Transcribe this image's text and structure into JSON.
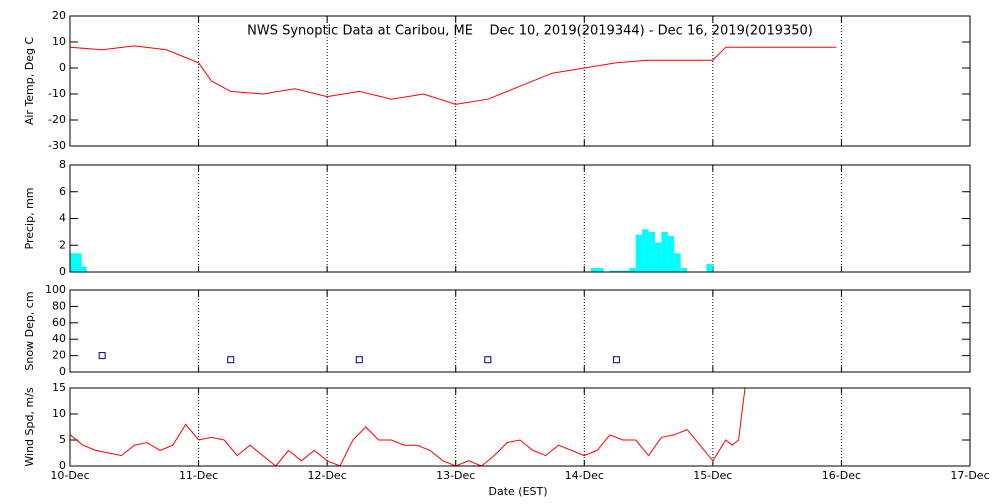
{
  "chart_data": [
    {
      "type": "line",
      "title": "NWS Synoptic Data at Caribou, ME    Dec 10, 2019(2019344) - Dec 16, 2019(2019350)",
      "ylabel": "Air Temp, Deg C",
      "ylim": [
        -30,
        20
      ],
      "yticks": [
        -30,
        -20,
        -10,
        0,
        10,
        20
      ],
      "series": [
        {
          "color": "#ff0000",
          "x": [
            0,
            0.25,
            0.5,
            0.75,
            1.0,
            1.1,
            1.25,
            1.5,
            1.75,
            2.0,
            2.25,
            2.5,
            2.75,
            3.0,
            3.25,
            3.5,
            3.75,
            4.0,
            4.25,
            4.5,
            4.75,
            5.0,
            5.1,
            5.5,
            5.96
          ],
          "values": [
            8,
            7,
            8.5,
            7,
            2,
            -5,
            -9,
            -10,
            -8,
            -11,
            -9,
            -12,
            -10,
            -14,
            -12,
            -7,
            -2,
            0,
            2,
            3,
            3,
            3,
            8,
            8,
            8
          ]
        }
      ]
    },
    {
      "type": "bar",
      "ylabel": "Precip, mm",
      "ylim": [
        0,
        8
      ],
      "yticks": [
        0,
        2,
        4,
        6,
        8
      ],
      "color": "#00ffff",
      "x": [
        0,
        0.04,
        0.08,
        4.05,
        4.1,
        4.2,
        4.25,
        4.3,
        4.35,
        4.4,
        4.45,
        4.5,
        4.55,
        4.6,
        4.65,
        4.7,
        4.75,
        4.95
      ],
      "values": [
        1.4,
        1.4,
        0.4,
        0.3,
        0.3,
        0.1,
        0.1,
        0.1,
        0.3,
        2.8,
        3.2,
        3.0,
        2.2,
        3.0,
        2.7,
        1.4,
        0.3,
        0.6
      ]
    },
    {
      "type": "scatter",
      "ylabel": "Snow Dep, cm",
      "ylim": [
        0,
        100
      ],
      "yticks": [
        0,
        20,
        40,
        60,
        80,
        100
      ],
      "color": "#000080",
      "x": [
        0.25,
        1.25,
        2.25,
        3.25,
        4.25
      ],
      "values": [
        20,
        15,
        15,
        15,
        15
      ]
    },
    {
      "type": "line",
      "ylabel": "Wind Spd, m/s",
      "xlabel": "Date (EST)",
      "ylim": [
        0,
        15
      ],
      "yticks": [
        0,
        5,
        10,
        15
      ],
      "xlim": [
        0,
        7
      ],
      "xticks": [
        {
          "value": 0,
          "label": "10-Dec"
        },
        {
          "value": 1,
          "label": "11-Dec"
        },
        {
          "value": 2,
          "label": "12-Dec"
        },
        {
          "value": 3,
          "label": "13-Dec"
        },
        {
          "value": 4,
          "label": "14-Dec"
        },
        {
          "value": 5,
          "label": "15-Dec"
        },
        {
          "value": 6,
          "label": "16-Dec"
        },
        {
          "value": 7,
          "label": "17-Dec"
        }
      ],
      "series": [
        {
          "color": "#ff0000",
          "x": [
            0,
            0.1,
            0.2,
            0.3,
            0.4,
            0.5,
            0.6,
            0.7,
            0.8,
            0.9,
            1.0,
            1.1,
            1.2,
            1.3,
            1.4,
            1.5,
            1.6,
            1.7,
            1.8,
            1.9,
            2.0,
            2.1,
            2.2,
            2.3,
            2.4,
            2.5,
            2.6,
            2.7,
            2.8,
            2.9,
            3.0,
            3.1,
            3.2,
            3.3,
            3.4,
            3.5,
            3.6,
            3.7,
            3.8,
            3.9,
            4.0,
            4.1,
            4.2,
            4.3,
            4.4,
            4.5,
            4.6,
            4.7,
            4.8,
            4.9,
            5.0,
            5.1,
            5.15,
            5.2,
            5.25
          ],
          "values": [
            6,
            4,
            3,
            2.5,
            2,
            4,
            4.5,
            3,
            4,
            8,
            5,
            5.5,
            5,
            2,
            4,
            2,
            0,
            3,
            1,
            3,
            1,
            0,
            5,
            7.5,
            5,
            5,
            4,
            4,
            3,
            1,
            0,
            1,
            0,
            2,
            4.5,
            5,
            3,
            2,
            4,
            3,
            2,
            3,
            6,
            5,
            5,
            2,
            5.5,
            6,
            7,
            4,
            1,
            5,
            4,
            5,
            15
          ]
        }
      ]
    }
  ]
}
